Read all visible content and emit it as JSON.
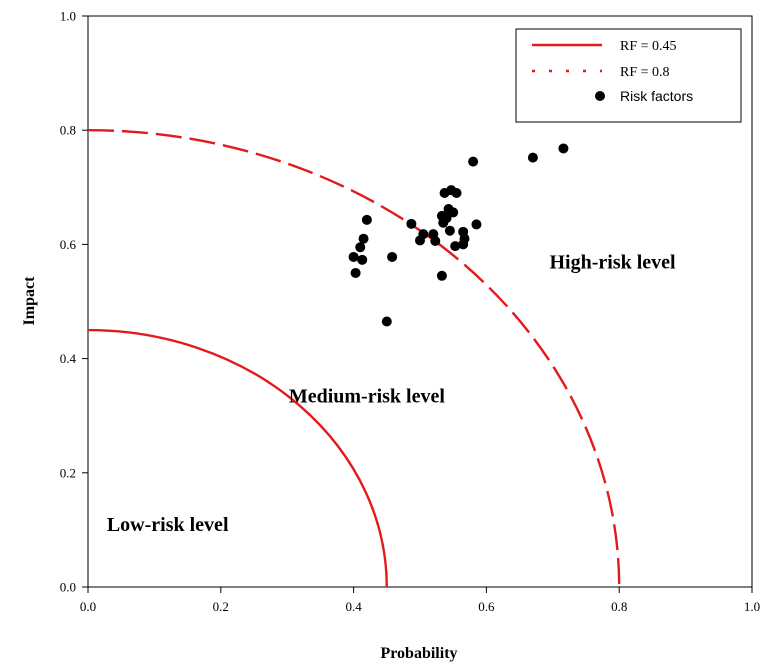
{
  "chart_data": {
    "type": "scatter",
    "title": "",
    "xlabel": "Probability",
    "ylabel": "Impact",
    "xlim": [
      0,
      1
    ],
    "ylim": [
      0,
      1
    ],
    "x_ticks": [
      "0.0",
      "0.2",
      "0.4",
      "0.6",
      "0.8",
      "1.0"
    ],
    "y_ticks": [
      "0.0",
      "0.2",
      "0.4",
      "0.6",
      "0.8",
      "1.0"
    ],
    "grid": false,
    "legend_position": "top-right",
    "curves": [
      {
        "name": "RF = 0.45",
        "rf": 0.45,
        "style": "solid",
        "color": "#e31a1c"
      },
      {
        "name": "RF = 0.8",
        "rf": 0.8,
        "style": "dashed",
        "color": "#e31a1c"
      }
    ],
    "series": [
      {
        "name": "Risk factors",
        "color": "#000000",
        "points": [
          [
            0.45,
            0.465
          ],
          [
            0.4,
            0.578
          ],
          [
            0.403,
            0.55
          ],
          [
            0.41,
            0.595
          ],
          [
            0.413,
            0.573
          ],
          [
            0.415,
            0.61
          ],
          [
            0.42,
            0.643
          ],
          [
            0.458,
            0.578
          ],
          [
            0.487,
            0.636
          ],
          [
            0.5,
            0.607
          ],
          [
            0.505,
            0.618
          ],
          [
            0.52,
            0.618
          ],
          [
            0.523,
            0.606
          ],
          [
            0.533,
            0.65
          ],
          [
            0.533,
            0.545
          ],
          [
            0.535,
            0.638
          ],
          [
            0.537,
            0.69
          ],
          [
            0.54,
            0.646
          ],
          [
            0.543,
            0.662
          ],
          [
            0.545,
            0.624
          ],
          [
            0.547,
            0.695
          ],
          [
            0.55,
            0.656
          ],
          [
            0.553,
            0.597
          ],
          [
            0.555,
            0.69
          ],
          [
            0.565,
            0.622
          ],
          [
            0.565,
            0.6
          ],
          [
            0.567,
            0.61
          ],
          [
            0.58,
            0.745
          ],
          [
            0.585,
            0.635
          ],
          [
            0.67,
            0.752
          ],
          [
            0.716,
            0.768
          ]
        ]
      }
    ],
    "regions": [
      {
        "label": "Low-risk level",
        "x": 0.12,
        "y": 0.11
      },
      {
        "label": "Medium-risk level",
        "x": 0.42,
        "y": 0.335
      },
      {
        "label": "High-risk level",
        "x": 0.79,
        "y": 0.57
      }
    ]
  }
}
